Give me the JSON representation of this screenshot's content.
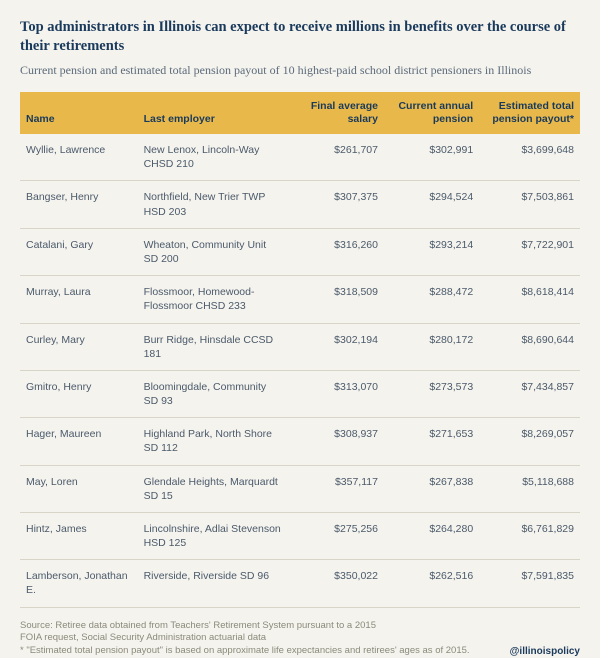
{
  "title": "Top administrators in Illinois can expect to receive millions in benefits over the course of their retirements",
  "subtitle": "Current pension and estimated total pension payout of 10 highest-paid school district pensioners in Illinois",
  "columns": {
    "name": "Name",
    "employer": "Last employer",
    "salary": "Final average salary",
    "pension": "Current annual pension",
    "total": "Estimated total pension payout*"
  },
  "rows": [
    {
      "name": "Wyllie, Lawrence",
      "employer": "New Lenox, Lincoln-Way CHSD 210",
      "salary": "$261,707",
      "pension": "$302,991",
      "total": "$3,699,648"
    },
    {
      "name": "Bangser, Henry",
      "employer": "Northfield, New Trier TWP HSD 203",
      "salary": "$307,375",
      "pension": "$294,524",
      "total": "$7,503,861"
    },
    {
      "name": "Catalani, Gary",
      "employer": "Wheaton, Community Unit SD 200",
      "salary": "$316,260",
      "pension": "$293,214",
      "total": "$7,722,901"
    },
    {
      "name": "Murray, Laura",
      "employer": "Flossmoor, Homewood-Flossmoor CHSD 233",
      "salary": "$318,509",
      "pension": "$288,472",
      "total": "$8,618,414"
    },
    {
      "name": "Curley, Mary",
      "employer": "Burr Ridge, Hinsdale CCSD 181",
      "salary": "$302,194",
      "pension": "$280,172",
      "total": "$8,690,644"
    },
    {
      "name": "Gmitro, Henry",
      "employer": "Bloomingdale, Community SD 93",
      "salary": "$313,070",
      "pension": "$273,573",
      "total": "$7,434,857"
    },
    {
      "name": "Hager, Maureen",
      "employer": "Highland Park, North Shore SD 112",
      "salary": "$308,937",
      "pension": "$271,653",
      "total": "$8,269,057"
    },
    {
      "name": "May, Loren",
      "employer": "Glendale Heights, Marquardt SD 15",
      "salary": "$357,117",
      "pension": "$267,838",
      "total": "$5,118,688"
    },
    {
      "name": "Hintz, James",
      "employer": "Lincolnshire, Adlai Stevenson HSD 125",
      "salary": "$275,256",
      "pension": "$264,280",
      "total": "$6,761,829"
    },
    {
      "name": "Lamberson, Jonathan E.",
      "employer": "Riverside, Riverside SD 96",
      "salary": "$350,022",
      "pension": "$262,516",
      "total": "$7,591,835"
    }
  ],
  "source1": "Source: Retiree data obtained from Teachers' Retirement System pursuant to a 2015",
  "source2": "FOIA request, Social Security Administration actuarial data",
  "note": "* \"Estimated total pension payout\" is based on approximate life expectancies and retirees' ages as of 2015.",
  "handle": "@illinoispolicy",
  "colors": {
    "background": "#f5f3ee",
    "header_bg": "#e8b94a",
    "title_text": "#1a3a5c",
    "body_text": "#4a5a6a",
    "border": "#d8d4c8",
    "footer_text": "#8a8a7a"
  }
}
